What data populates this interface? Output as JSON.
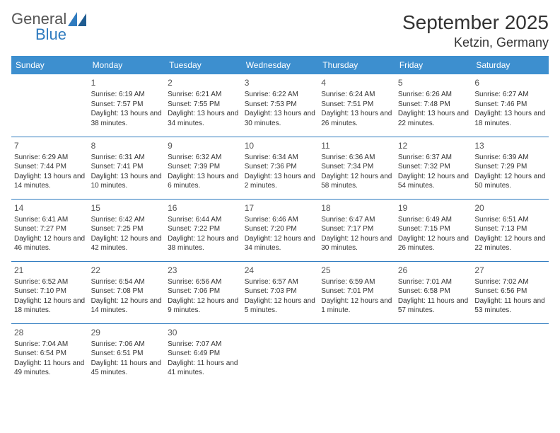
{
  "logo": {
    "word1": "General",
    "word2": "Blue"
  },
  "title": "September 2025",
  "location": "Ketzin, Germany",
  "colors": {
    "header_bg": "#3d8fcf",
    "border": "#2f7bbf",
    "text": "#333333",
    "logo_accent": "#2f7bbf"
  },
  "day_headers": [
    "Sunday",
    "Monday",
    "Tuesday",
    "Wednesday",
    "Thursday",
    "Friday",
    "Saturday"
  ],
  "weeks": [
    [
      null,
      {
        "n": "1",
        "sr": "Sunrise: 6:19 AM",
        "ss": "Sunset: 7:57 PM",
        "dl": "Daylight: 13 hours and 38 minutes."
      },
      {
        "n": "2",
        "sr": "Sunrise: 6:21 AM",
        "ss": "Sunset: 7:55 PM",
        "dl": "Daylight: 13 hours and 34 minutes."
      },
      {
        "n": "3",
        "sr": "Sunrise: 6:22 AM",
        "ss": "Sunset: 7:53 PM",
        "dl": "Daylight: 13 hours and 30 minutes."
      },
      {
        "n": "4",
        "sr": "Sunrise: 6:24 AM",
        "ss": "Sunset: 7:51 PM",
        "dl": "Daylight: 13 hours and 26 minutes."
      },
      {
        "n": "5",
        "sr": "Sunrise: 6:26 AM",
        "ss": "Sunset: 7:48 PM",
        "dl": "Daylight: 13 hours and 22 minutes."
      },
      {
        "n": "6",
        "sr": "Sunrise: 6:27 AM",
        "ss": "Sunset: 7:46 PM",
        "dl": "Daylight: 13 hours and 18 minutes."
      }
    ],
    [
      {
        "n": "7",
        "sr": "Sunrise: 6:29 AM",
        "ss": "Sunset: 7:44 PM",
        "dl": "Daylight: 13 hours and 14 minutes."
      },
      {
        "n": "8",
        "sr": "Sunrise: 6:31 AM",
        "ss": "Sunset: 7:41 PM",
        "dl": "Daylight: 13 hours and 10 minutes."
      },
      {
        "n": "9",
        "sr": "Sunrise: 6:32 AM",
        "ss": "Sunset: 7:39 PM",
        "dl": "Daylight: 13 hours and 6 minutes."
      },
      {
        "n": "10",
        "sr": "Sunrise: 6:34 AM",
        "ss": "Sunset: 7:36 PM",
        "dl": "Daylight: 13 hours and 2 minutes."
      },
      {
        "n": "11",
        "sr": "Sunrise: 6:36 AM",
        "ss": "Sunset: 7:34 PM",
        "dl": "Daylight: 12 hours and 58 minutes."
      },
      {
        "n": "12",
        "sr": "Sunrise: 6:37 AM",
        "ss": "Sunset: 7:32 PM",
        "dl": "Daylight: 12 hours and 54 minutes."
      },
      {
        "n": "13",
        "sr": "Sunrise: 6:39 AM",
        "ss": "Sunset: 7:29 PM",
        "dl": "Daylight: 12 hours and 50 minutes."
      }
    ],
    [
      {
        "n": "14",
        "sr": "Sunrise: 6:41 AM",
        "ss": "Sunset: 7:27 PM",
        "dl": "Daylight: 12 hours and 46 minutes."
      },
      {
        "n": "15",
        "sr": "Sunrise: 6:42 AM",
        "ss": "Sunset: 7:25 PM",
        "dl": "Daylight: 12 hours and 42 minutes."
      },
      {
        "n": "16",
        "sr": "Sunrise: 6:44 AM",
        "ss": "Sunset: 7:22 PM",
        "dl": "Daylight: 12 hours and 38 minutes."
      },
      {
        "n": "17",
        "sr": "Sunrise: 6:46 AM",
        "ss": "Sunset: 7:20 PM",
        "dl": "Daylight: 12 hours and 34 minutes."
      },
      {
        "n": "18",
        "sr": "Sunrise: 6:47 AM",
        "ss": "Sunset: 7:17 PM",
        "dl": "Daylight: 12 hours and 30 minutes."
      },
      {
        "n": "19",
        "sr": "Sunrise: 6:49 AM",
        "ss": "Sunset: 7:15 PM",
        "dl": "Daylight: 12 hours and 26 minutes."
      },
      {
        "n": "20",
        "sr": "Sunrise: 6:51 AM",
        "ss": "Sunset: 7:13 PM",
        "dl": "Daylight: 12 hours and 22 minutes."
      }
    ],
    [
      {
        "n": "21",
        "sr": "Sunrise: 6:52 AM",
        "ss": "Sunset: 7:10 PM",
        "dl": "Daylight: 12 hours and 18 minutes."
      },
      {
        "n": "22",
        "sr": "Sunrise: 6:54 AM",
        "ss": "Sunset: 7:08 PM",
        "dl": "Daylight: 12 hours and 14 minutes."
      },
      {
        "n": "23",
        "sr": "Sunrise: 6:56 AM",
        "ss": "Sunset: 7:06 PM",
        "dl": "Daylight: 12 hours and 9 minutes."
      },
      {
        "n": "24",
        "sr": "Sunrise: 6:57 AM",
        "ss": "Sunset: 7:03 PM",
        "dl": "Daylight: 12 hours and 5 minutes."
      },
      {
        "n": "25",
        "sr": "Sunrise: 6:59 AM",
        "ss": "Sunset: 7:01 PM",
        "dl": "Daylight: 12 hours and 1 minute."
      },
      {
        "n": "26",
        "sr": "Sunrise: 7:01 AM",
        "ss": "Sunset: 6:58 PM",
        "dl": "Daylight: 11 hours and 57 minutes."
      },
      {
        "n": "27",
        "sr": "Sunrise: 7:02 AM",
        "ss": "Sunset: 6:56 PM",
        "dl": "Daylight: 11 hours and 53 minutes."
      }
    ],
    [
      {
        "n": "28",
        "sr": "Sunrise: 7:04 AM",
        "ss": "Sunset: 6:54 PM",
        "dl": "Daylight: 11 hours and 49 minutes."
      },
      {
        "n": "29",
        "sr": "Sunrise: 7:06 AM",
        "ss": "Sunset: 6:51 PM",
        "dl": "Daylight: 11 hours and 45 minutes."
      },
      {
        "n": "30",
        "sr": "Sunrise: 7:07 AM",
        "ss": "Sunset: 6:49 PM",
        "dl": "Daylight: 11 hours and 41 minutes."
      },
      null,
      null,
      null,
      null
    ]
  ]
}
